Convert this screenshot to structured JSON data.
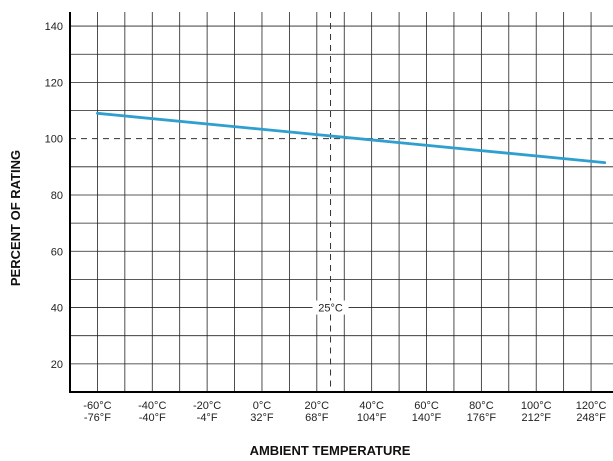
{
  "chart_data": {
    "type": "line",
    "title": "",
    "xlabel": "AMBIENT TEMPERATURE",
    "ylabel": "PERCENT OF RATING",
    "x_unit": "°C",
    "xlim": [
      -70,
      128
    ],
    "ylim": [
      10,
      145
    ],
    "x_ticks": [
      {
        "value": -60,
        "c": "-60°C",
        "f": "-76°F"
      },
      {
        "value": -40,
        "c": "-40°C",
        "f": "-40°F"
      },
      {
        "value": -20,
        "c": "-20°C",
        "f": "-4°F"
      },
      {
        "value": 0,
        "c": "0°C",
        "f": "32°F"
      },
      {
        "value": 20,
        "c": "20°C",
        "f": "68°F"
      },
      {
        "value": 40,
        "c": "40°C",
        "f": "104°F"
      },
      {
        "value": 60,
        "c": "60°C",
        "f": "140°F"
      },
      {
        "value": 80,
        "c": "80°C",
        "f": "176°F"
      },
      {
        "value": 100,
        "c": "100°C",
        "f": "212°F"
      },
      {
        "value": 120,
        "c": "120°C",
        "f": "248°F"
      }
    ],
    "y_ticks": [
      {
        "value": 20,
        "label": "20"
      },
      {
        "value": 40,
        "label": "40"
      },
      {
        "value": 60,
        "label": "60"
      },
      {
        "value": 80,
        "label": "80"
      },
      {
        "value": 100,
        "label": "100"
      },
      {
        "value": 120,
        "label": "120"
      },
      {
        "value": 140,
        "label": "140"
      }
    ],
    "grid": true,
    "x_grid_step": 10,
    "y_grid_step": 10,
    "reference_lines": {
      "y": 100,
      "x": 25,
      "x_label": "25°C"
    },
    "series": [
      {
        "color": "#2f9fd0",
        "points": [
          [
            -60,
            109
          ],
          [
            125,
            91.5
          ]
        ]
      }
    ]
  }
}
